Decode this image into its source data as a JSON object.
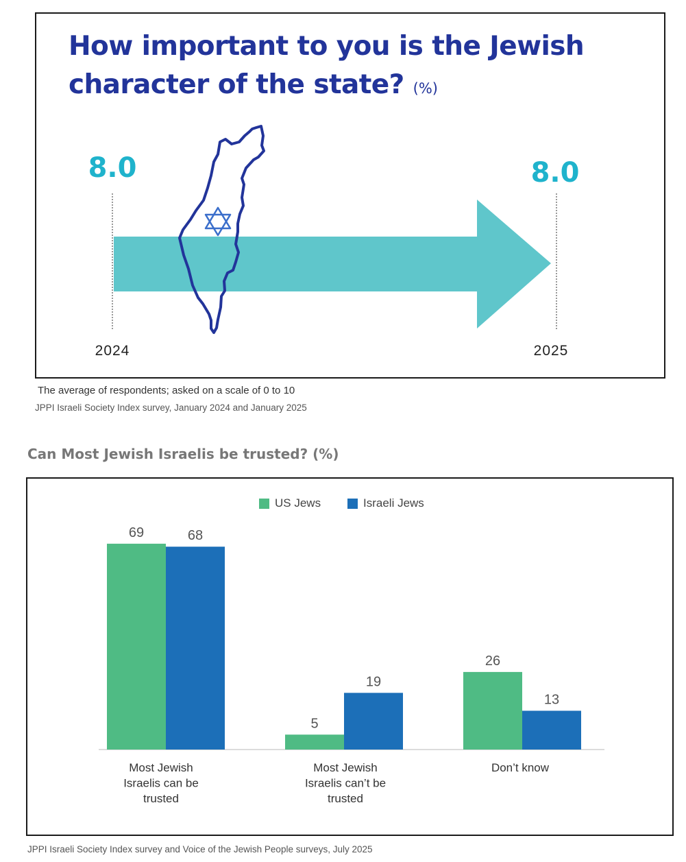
{
  "panel1": {
    "title": "How important to you is the Jewish character of the state?",
    "title_unit": "(%)",
    "left_value": "8.0",
    "right_value": "8.0",
    "left_year": "2024",
    "right_year": "2025",
    "note": "The average of respondents; asked on a scale of 0 to 10",
    "source": "JPPI Israeli Society Index survey, January 2024 and January 2025",
    "colors": {
      "title": "#22349a",
      "value": "#1fb3cc",
      "arrow": "#5fc6cb",
      "map": "#22349a",
      "star": "#3a6ecb"
    }
  },
  "panel2": {
    "title": "Can Most Jewish Israelis be trusted? (%)",
    "source": "JPPI Israeli Society Index survey and Voice of the Jewish People surveys, July 2025",
    "legend": [
      {
        "label": "US Jews",
        "color": "#4fbb84"
      },
      {
        "label": "Israeli Jews",
        "color": "#1c6fb8"
      }
    ]
  },
  "chart_data": [
    {
      "type": "bar",
      "title": "How important to you is the Jewish character of the state? (%)",
      "categories": [
        "2024",
        "2025"
      ],
      "values": [
        8.0,
        8.0
      ]
    },
    {
      "type": "bar",
      "title": "Can Most Jewish Israelis be trusted? (%)",
      "categories": [
        [
          "Most Jewish",
          "Israelis can be",
          "trusted"
        ],
        [
          "Most Jewish",
          "Israelis can’t be",
          "trusted"
        ],
        [
          "Don’t know"
        ]
      ],
      "series": [
        {
          "name": "US Jews",
          "values": [
            69,
            5,
            26
          ],
          "color": "#4fbb84"
        },
        {
          "name": "Israeli Jews",
          "values": [
            68,
            19,
            13
          ],
          "color": "#1c6fb8"
        }
      ],
      "ylim": [
        0,
        80
      ]
    }
  ]
}
